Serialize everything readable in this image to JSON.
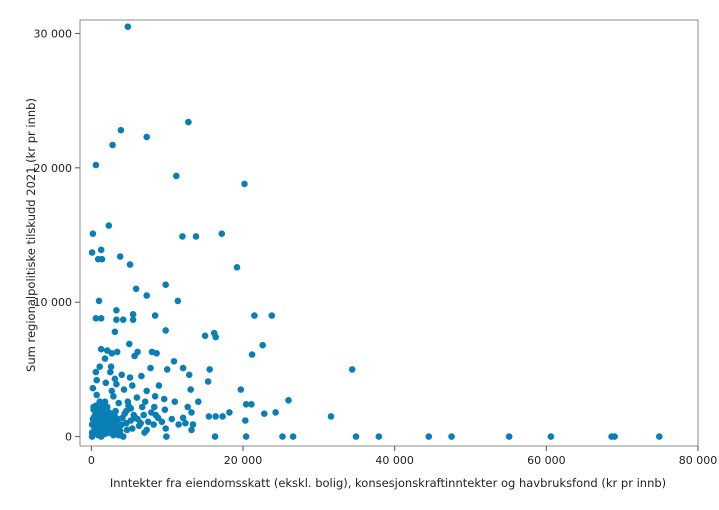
{
  "chart_data": {
    "type": "scatter",
    "title": "",
    "xlabel": "Inntekter fra eiendomsskatt (ekskl. bolig), konsesjonskraftinntekter og havbruksfond (kr pr innb)",
    "ylabel": "Sum regionalpolitiske tilskudd 2021  (kr pr innb)",
    "xlim": [
      -1500,
      80000
    ],
    "ylim": [
      -700,
      31000
    ],
    "xticks": [
      0,
      20000,
      40000,
      60000,
      80000
    ],
    "yticks": [
      0,
      10000,
      20000,
      30000
    ],
    "xtick_labels": [
      "0",
      "20 000",
      "40 000",
      "60 000",
      "80 000"
    ],
    "ytick_labels": [
      "0",
      "10 000",
      "20 000",
      "30 000"
    ],
    "marker_color": "#0a7fb5",
    "grid": false,
    "points": [
      [
        4800,
        30500
      ],
      [
        12800,
        23400
      ],
      [
        3900,
        22800
      ],
      [
        7300,
        22300
      ],
      [
        2800,
        21700
      ],
      [
        600,
        20200
      ],
      [
        11200,
        19400
      ],
      [
        20200,
        18800
      ],
      [
        200,
        15100
      ],
      [
        2300,
        15700
      ],
      [
        12000,
        14900
      ],
      [
        13800,
        14900
      ],
      [
        17200,
        15100
      ],
      [
        1300,
        13900
      ],
      [
        100,
        13700
      ],
      [
        900,
        13200
      ],
      [
        1400,
        13200
      ],
      [
        3800,
        13400
      ],
      [
        5100,
        12800
      ],
      [
        19200,
        12600
      ],
      [
        5900,
        11000
      ],
      [
        9800,
        11300
      ],
      [
        7300,
        10500
      ],
      [
        1000,
        10100
      ],
      [
        11400,
        10100
      ],
      [
        3300,
        9400
      ],
      [
        5500,
        9100
      ],
      [
        8400,
        9000
      ],
      [
        21500,
        9000
      ],
      [
        23800,
        9000
      ],
      [
        600,
        8800
      ],
      [
        1300,
        8800
      ],
      [
        3300,
        8700
      ],
      [
        4200,
        8700
      ],
      [
        5500,
        8700
      ],
      [
        9800,
        7900
      ],
      [
        3100,
        7800
      ],
      [
        16200,
        7700
      ],
      [
        15000,
        7500
      ],
      [
        16400,
        7400
      ],
      [
        22600,
        6800
      ],
      [
        5000,
        6900
      ],
      [
        1300,
        6500
      ],
      [
        2100,
        6400
      ],
      [
        3400,
        6300
      ],
      [
        6100,
        6300
      ],
      [
        8000,
        6300
      ],
      [
        8600,
        6200
      ],
      [
        2700,
        6200
      ],
      [
        5700,
        6000
      ],
      [
        21200,
        6100
      ],
      [
        1800,
        5800
      ],
      [
        10900,
        5600
      ],
      [
        1100,
        5200
      ],
      [
        2600,
        5200
      ],
      [
        7800,
        5100
      ],
      [
        10000,
        5000
      ],
      [
        12100,
        5100
      ],
      [
        15600,
        5000
      ],
      [
        34400,
        5000
      ],
      [
        600,
        4800
      ],
      [
        2500,
        4800
      ],
      [
        4000,
        4600
      ],
      [
        3100,
        4300
      ],
      [
        5100,
        4400
      ],
      [
        6600,
        4500
      ],
      [
        12900,
        4600
      ],
      [
        15400,
        4100
      ],
      [
        700,
        4200
      ],
      [
        1900,
        4000
      ],
      [
        3300,
        3900
      ],
      [
        5400,
        3800
      ],
      [
        8900,
        3800
      ],
      [
        200,
        3600
      ],
      [
        2700,
        3400
      ],
      [
        4300,
        3500
      ],
      [
        7300,
        3400
      ],
      [
        13100,
        3500
      ],
      [
        19700,
        3500
      ],
      [
        700,
        3100
      ],
      [
        2900,
        3000
      ],
      [
        6000,
        2900
      ],
      [
        8400,
        3000
      ],
      [
        9600,
        2800
      ],
      [
        1100,
        2600
      ],
      [
        3600,
        2500
      ],
      [
        4800,
        2600
      ],
      [
        7100,
        2600
      ],
      [
        11000,
        2600
      ],
      [
        14100,
        2600
      ],
      [
        20400,
        2400
      ],
      [
        21100,
        2400
      ],
      [
        26000,
        2700
      ],
      [
        300,
        2200
      ],
      [
        2100,
        2200
      ],
      [
        5200,
        2100
      ],
      [
        6700,
        2200
      ],
      [
        8300,
        2200
      ],
      [
        9700,
        2000
      ],
      [
        12700,
        2200
      ],
      [
        16400,
        1500
      ],
      [
        1600,
        1900
      ],
      [
        4600,
        1900
      ],
      [
        7900,
        1800
      ],
      [
        13200,
        1800
      ],
      [
        18200,
        1800
      ],
      [
        22800,
        1700
      ],
      [
        24300,
        1800
      ],
      [
        31600,
        1500
      ],
      [
        400,
        1500
      ],
      [
        3100,
        1500
      ],
      [
        5800,
        1400
      ],
      [
        8800,
        1400
      ],
      [
        10600,
        1300
      ],
      [
        12100,
        1400
      ],
      [
        15500,
        1500
      ],
      [
        17300,
        1500
      ],
      [
        20300,
        1200
      ],
      [
        1000,
        1000
      ],
      [
        2700,
        900
      ],
      [
        4600,
        1000
      ],
      [
        6500,
        1000
      ],
      [
        8200,
        900
      ],
      [
        12400,
        1000
      ],
      [
        13400,
        900
      ],
      [
        9800,
        600
      ],
      [
        13200,
        500
      ],
      [
        25200,
        0
      ],
      [
        26600,
        0
      ],
      [
        700,
        600
      ],
      [
        2200,
        500
      ],
      [
        3800,
        400
      ],
      [
        5400,
        600
      ],
      [
        7300,
        500
      ],
      [
        100,
        0
      ],
      [
        1300,
        0
      ],
      [
        2900,
        100
      ],
      [
        4200,
        0
      ],
      [
        9900,
        0
      ],
      [
        16300,
        0
      ],
      [
        20400,
        0
      ],
      [
        34900,
        0
      ],
      [
        37900,
        0
      ],
      [
        44500,
        0
      ],
      [
        47500,
        0
      ],
      [
        55100,
        0
      ],
      [
        60600,
        0
      ],
      [
        68600,
        0
      ],
      [
        69000,
        0
      ],
      [
        74900,
        0
      ],
      [
        100,
        300
      ],
      [
        300,
        200
      ],
      [
        600,
        400
      ],
      [
        900,
        100
      ],
      [
        1200,
        500
      ],
      [
        1500,
        300
      ],
      [
        1800,
        200
      ],
      [
        2100,
        700
      ],
      [
        2400,
        300
      ],
      [
        2700,
        500
      ],
      [
        3000,
        200
      ],
      [
        3300,
        400
      ],
      [
        3600,
        100
      ],
      [
        400,
        700
      ],
      [
        700,
        1100
      ],
      [
        1000,
        800
      ],
      [
        1300,
        1200
      ],
      [
        1600,
        900
      ],
      [
        1900,
        1300
      ],
      [
        2200,
        1000
      ],
      [
        2500,
        1400
      ],
      [
        2800,
        1100
      ],
      [
        3100,
        900
      ],
      [
        3400,
        1200
      ],
      [
        3700,
        700
      ],
      [
        200,
        1300
      ],
      [
        500,
        1600
      ],
      [
        800,
        1400
      ],
      [
        1100,
        1700
      ],
      [
        1400,
        1500
      ],
      [
        1700,
        2000
      ],
      [
        2000,
        1600
      ],
      [
        2300,
        1800
      ],
      [
        2600,
        1700
      ],
      [
        2900,
        1400
      ],
      [
        3200,
        1900
      ],
      [
        3500,
        1300
      ],
      [
        4100,
        1400
      ],
      [
        4400,
        1700
      ],
      [
        300,
        2000
      ],
      [
        600,
        2300
      ],
      [
        900,
        1900
      ],
      [
        1200,
        2100
      ],
      [
        1500,
        2400
      ],
      [
        1800,
        2600
      ],
      [
        4900,
        2300
      ],
      [
        5600,
        1600
      ],
      [
        6100,
        1300
      ],
      [
        6900,
        1600
      ],
      [
        7500,
        1100
      ],
      [
        8500,
        1600
      ],
      [
        9300,
        1100
      ],
      [
        11500,
        900
      ],
      [
        100,
        900
      ],
      [
        400,
        1000
      ],
      [
        800,
        700
      ],
      [
        1700,
        600
      ],
      [
        2300,
        300
      ],
      [
        3500,
        600
      ],
      [
        4000,
        900
      ],
      [
        4700,
        500
      ],
      [
        5200,
        1200
      ],
      [
        6300,
        800
      ],
      [
        7000,
        300
      ]
    ]
  }
}
